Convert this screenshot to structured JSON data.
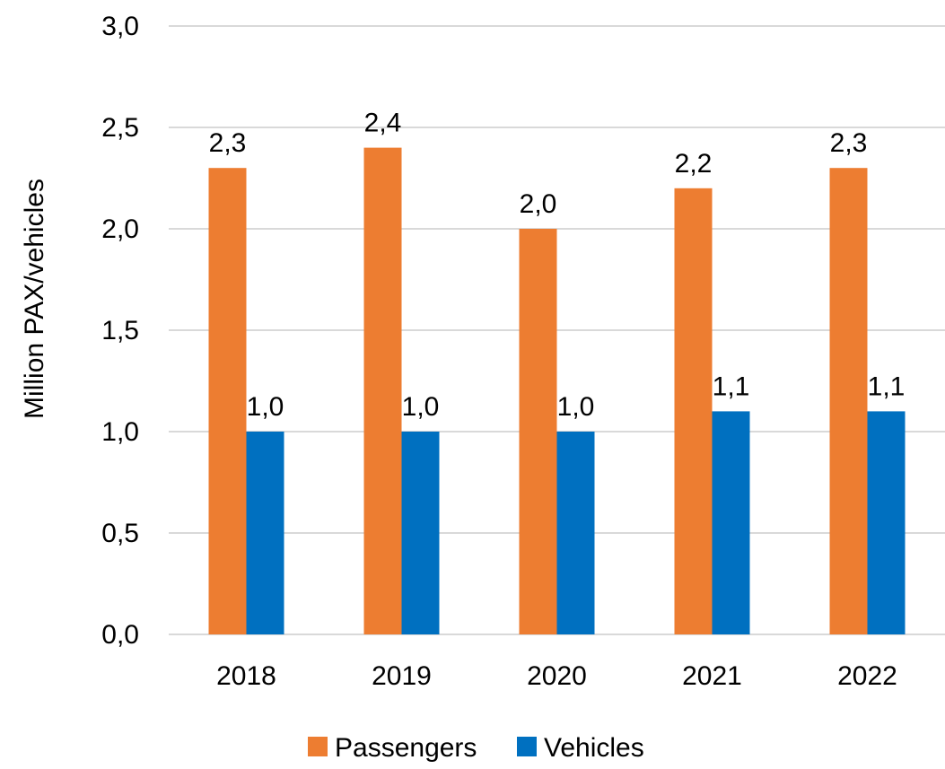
{
  "chart_data": {
    "type": "bar",
    "title": "",
    "xlabel": "",
    "ylabel": "Million PAX/vehicles",
    "ylim": [
      0,
      3.0
    ],
    "ytick_step": 0.5,
    "ytick_labels": [
      "0,0",
      "0,5",
      "1,0",
      "1,5",
      "2,0",
      "2,5",
      "3,0"
    ],
    "categories": [
      "2018",
      "2019",
      "2020",
      "2021",
      "2022"
    ],
    "series": [
      {
        "name": "Passengers",
        "color": "#ed7d31",
        "values": [
          2.3,
          2.4,
          2.0,
          2.2,
          2.3
        ],
        "labels": [
          "2,3",
          "2,4",
          "2,0",
          "2,2",
          "2,3"
        ]
      },
      {
        "name": "Vehicles",
        "color": "#0070c0",
        "values": [
          1.0,
          1.0,
          1.0,
          1.1,
          1.1
        ],
        "labels": [
          "1,0",
          "1,0",
          "1,0",
          "1,1",
          "1,1"
        ]
      }
    ],
    "grid": true,
    "legend": "bottom"
  }
}
